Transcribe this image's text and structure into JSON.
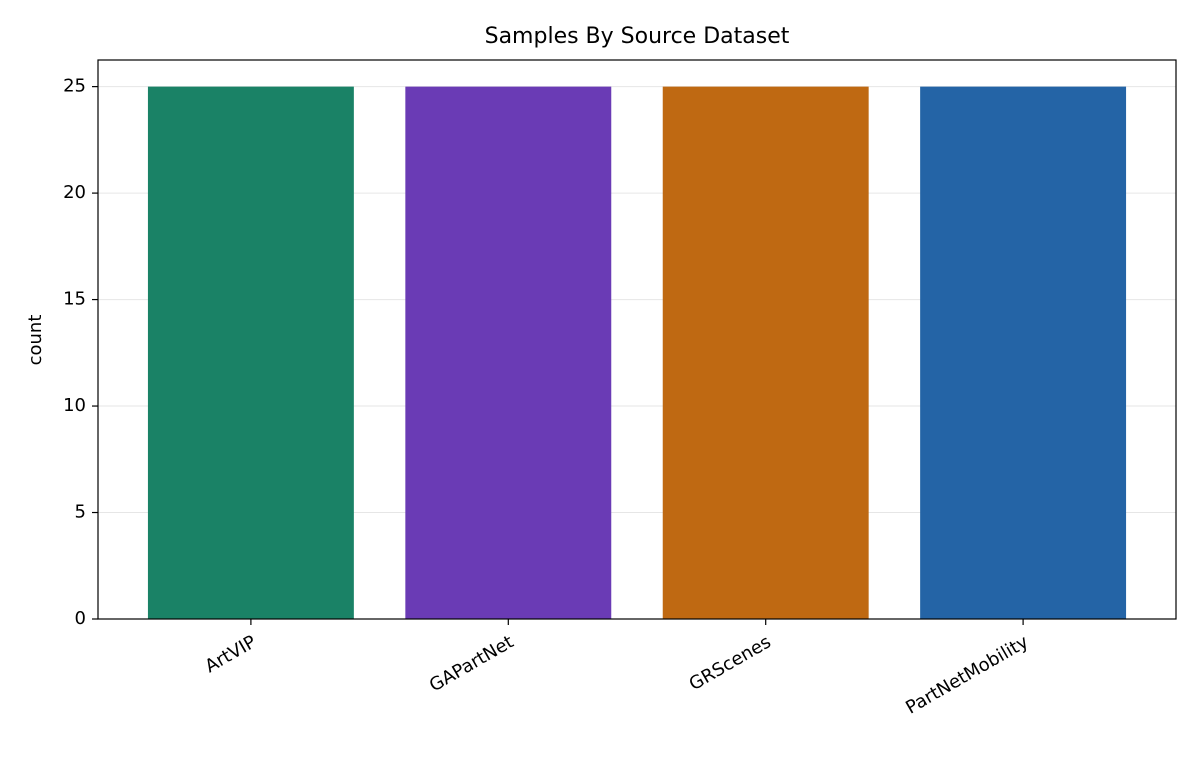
{
  "chart_data": {
    "type": "bar",
    "title": "Samples By Source Dataset",
    "y_label": "count",
    "categories": [
      "ArtVIP",
      "GAPartNet",
      "GRScenes",
      "PartNetMobility"
    ],
    "values": [
      25,
      25,
      25,
      25
    ],
    "colors": [
      "#1a8266",
      "#6a3bb5",
      "#bf6912",
      "#2464a6"
    ],
    "ylim": [
      0,
      26.25
    ],
    "yticks": [
      0,
      5,
      10,
      15,
      20,
      25
    ],
    "grid": true
  }
}
